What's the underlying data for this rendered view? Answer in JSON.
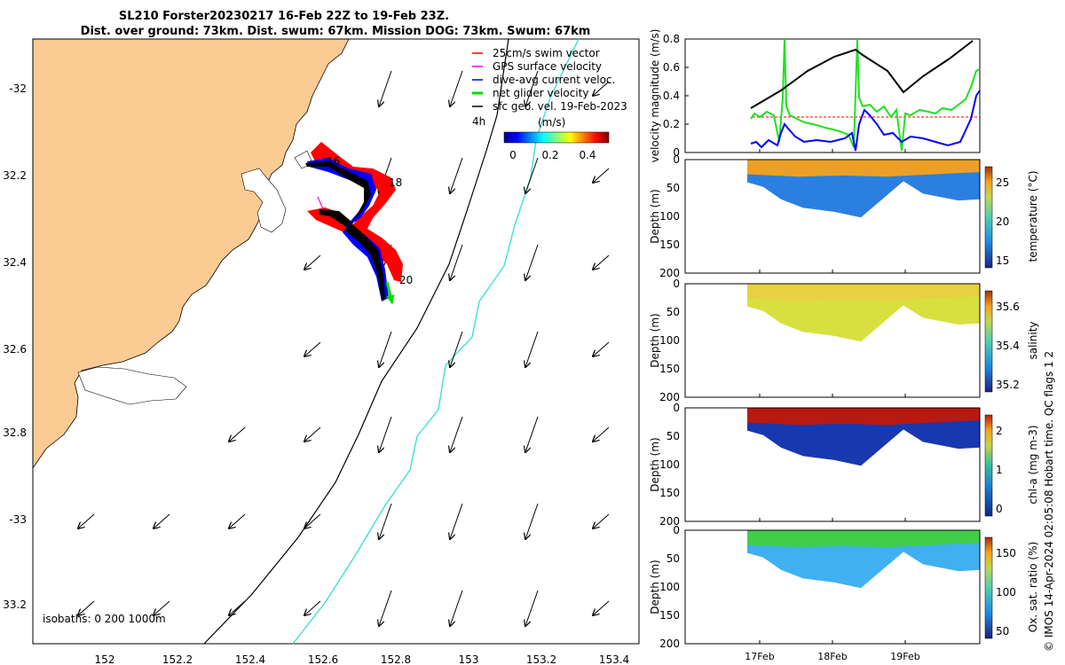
{
  "title": {
    "line1": "SL210 Forster20230217 16-Feb 22Z to 19-Feb 23Z.",
    "line2": "Dist. over ground: 73km. Dist. swum: 67km. Mission DOG: 73km. Swum: 67km"
  },
  "map": {
    "lon_ticks": [
      "152",
      "152.2",
      "152.4",
      "152.6",
      "152.8",
      "153",
      "153.2",
      "153.4"
    ],
    "lat_ticks": [
      "-32",
      "32.2",
      "32.4",
      "32.6",
      "32.8",
      "-33",
      "33.2"
    ],
    "lon_range": [
      151.8,
      153.48
    ],
    "lat_range": [
      -33.3,
      -31.9
    ],
    "isobath_label": "isobaths: 0   200  1000m",
    "legend": [
      {
        "label": "25cm/s swim vector",
        "color": "#ff0000"
      },
      {
        "label": "GPS surface velocity",
        "color": "#ff00ff"
      },
      {
        "label": "dive-avg current veloc.",
        "color": "#0000ff"
      },
      {
        "label": "net glider velocity",
        "color": "#00dd00"
      },
      {
        "label": "sfc geo. vel. 19-Feb-2023",
        "color": "#000000"
      }
    ],
    "scale_label": "4h",
    "colorbar": {
      "unit": "(m/s)",
      "ticks": [
        "0",
        "0.2",
        "0.4"
      ]
    },
    "track_labels": [
      "16",
      "18",
      "20"
    ],
    "colors": {
      "land": "#fbcb94",
      "isobath_200": "#000000",
      "isobath_1000": "#40e0d0"
    }
  },
  "panels": {
    "x_ticks": [
      "17Feb",
      "18Feb",
      "19Feb"
    ],
    "velocity": {
      "ylabel": "velocity magnitude (m/s)",
      "y_ticks": [
        "0",
        "0.2",
        "0.4",
        "0.6",
        "0.8"
      ],
      "ylim": [
        0,
        0.8
      ]
    },
    "temperature": {
      "ylabel": "Depth (m)",
      "cbar_label": "temperature (°C)",
      "cbar_ticks": [
        "15",
        "20",
        "25"
      ]
    },
    "salinity": {
      "ylabel": "Depth (m)",
      "cbar_label": "salinity",
      "cbar_ticks": [
        "35.2",
        "35.4",
        "35.6"
      ]
    },
    "chla": {
      "ylabel": "Depth (m)",
      "cbar_label": "chl-a (mg m-3)",
      "cbar_ticks": [
        "0",
        "1",
        "2"
      ]
    },
    "oxygen": {
      "ylabel": "Depth (m)",
      "cbar_label": "Ox. sat. ratio (%)",
      "cbar_ticks": [
        "50",
        "100",
        "150"
      ]
    },
    "depth_ticks": [
      "0",
      "50",
      "100",
      "150",
      "200"
    ]
  },
  "side_note": "© IMOS 14-Apr-2024 02:05:08 Hobart time. QC flags 1  2"
}
